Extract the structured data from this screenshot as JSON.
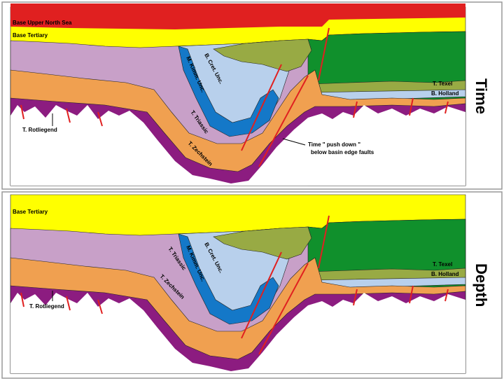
{
  "panels": [
    {
      "label": "Time",
      "horizons": [
        "Base Upper North Sea",
        "Base Tertiary",
        "B. Cret. Unc.",
        "M. Kimm. Unc.",
        "T. Triassic",
        "T. Zechstein",
        "T. Rotliegend",
        "T. Texel",
        "B. Holland"
      ],
      "annotation": [
        "Time \" push down \"",
        "below basin edge faults"
      ]
    },
    {
      "label": "Depth",
      "horizons": [
        "Base Tertiary",
        "B. Cret. Unc.",
        "M. Kimm. Unc.",
        "T. Triassic",
        "T. Zechstein",
        "T. Rotliegend",
        "T. Texel",
        "B. Holland"
      ]
    }
  ]
}
